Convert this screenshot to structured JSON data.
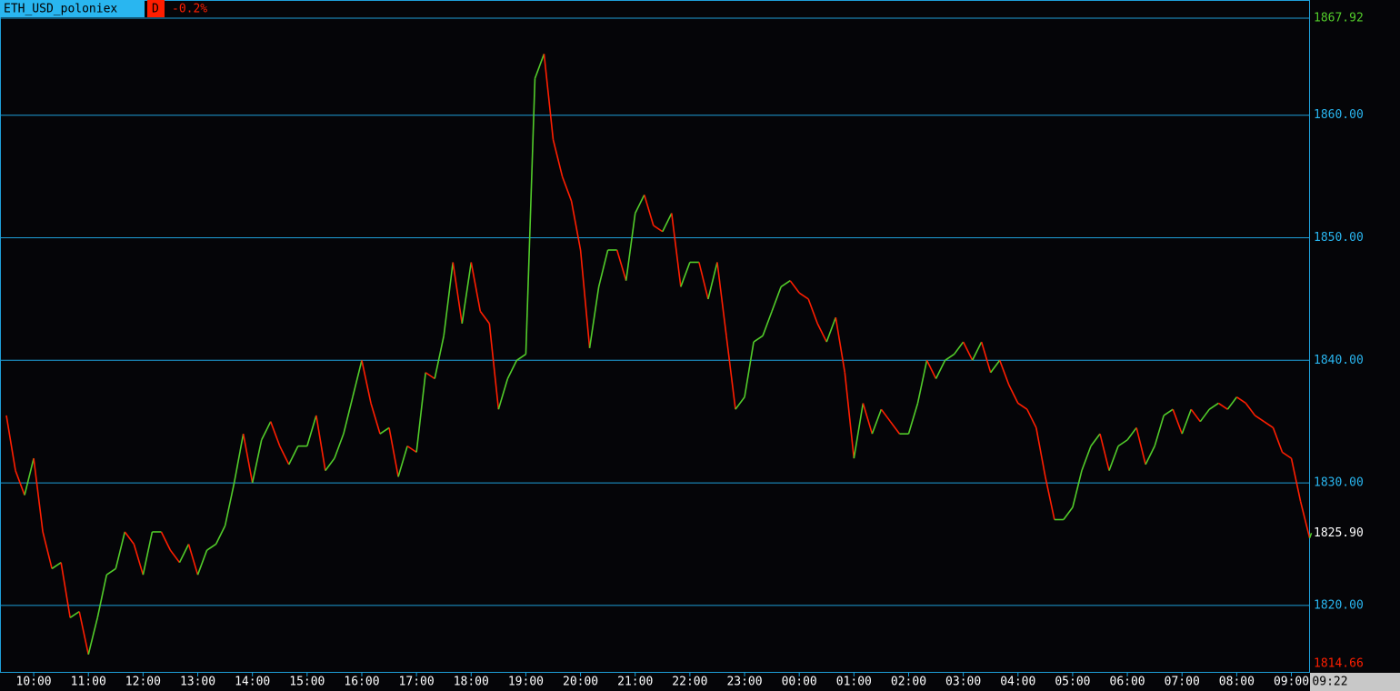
{
  "chart_data": {
    "type": "line",
    "title": "ETH_USD_poloniex",
    "interval": "D",
    "change": "-0.2%",
    "x": [
      "09:30",
      "09:40",
      "09:50",
      "10:00",
      "10:10",
      "10:20",
      "10:30",
      "10:40",
      "10:50",
      "11:00",
      "11:10",
      "11:20",
      "11:30",
      "11:40",
      "11:50",
      "12:00",
      "12:10",
      "12:20",
      "12:30",
      "12:40",
      "12:50",
      "13:00",
      "13:10",
      "13:20",
      "13:30",
      "13:40",
      "13:50",
      "14:00",
      "14:10",
      "14:20",
      "14:30",
      "14:40",
      "14:50",
      "15:00",
      "15:10",
      "15:20",
      "15:30",
      "15:40",
      "15:50",
      "16:00",
      "16:10",
      "16:20",
      "16:30",
      "16:40",
      "16:50",
      "17:00",
      "17:10",
      "17:20",
      "17:30",
      "17:40",
      "17:50",
      "18:00",
      "18:10",
      "18:20",
      "18:30",
      "18:40",
      "18:50",
      "19:00",
      "19:10",
      "19:20",
      "19:30",
      "19:40",
      "19:50",
      "20:00",
      "20:10",
      "20:20",
      "20:30",
      "20:40",
      "20:50",
      "21:00",
      "21:10",
      "21:20",
      "21:30",
      "21:40",
      "21:50",
      "22:00",
      "22:10",
      "22:20",
      "22:30",
      "22:40",
      "22:50",
      "23:00",
      "23:10",
      "23:20",
      "23:30",
      "23:40",
      "23:50",
      "00:00",
      "00:10",
      "00:20",
      "00:30",
      "00:40",
      "00:50",
      "01:00",
      "01:10",
      "01:20",
      "01:30",
      "01:40",
      "01:50",
      "02:00",
      "02:10",
      "02:20",
      "02:30",
      "02:40",
      "02:50",
      "03:00",
      "03:10",
      "03:20",
      "03:30",
      "03:40",
      "03:50",
      "04:00",
      "04:10",
      "04:20",
      "04:30",
      "04:40",
      "04:50",
      "05:00",
      "05:10",
      "05:20",
      "05:30",
      "05:40",
      "05:50",
      "06:00",
      "06:10",
      "06:20",
      "06:30",
      "06:40",
      "06:50",
      "07:00",
      "07:10",
      "07:20",
      "07:30",
      "07:40",
      "07:50",
      "08:00",
      "08:10",
      "08:20",
      "08:30",
      "08:40",
      "08:50",
      "09:00",
      "09:10",
      "09:20",
      "09:22"
    ],
    "values": [
      1835.5,
      1831,
      1829,
      1832,
      1826,
      1823,
      1823.5,
      1819,
      1819.5,
      1816,
      1819,
      1822.5,
      1823,
      1826,
      1825,
      1822.5,
      1826,
      1826,
      1824.5,
      1823.5,
      1825,
      1822.5,
      1824.5,
      1825,
      1826.5,
      1830,
      1834,
      1830,
      1833.5,
      1835,
      1833,
      1831.5,
      1833,
      1833,
      1835.5,
      1831,
      1832,
      1834,
      1837,
      1840,
      1836.5,
      1834,
      1834.5,
      1830.5,
      1833,
      1832.5,
      1839,
      1838.5,
      1842,
      1848,
      1843,
      1848,
      1844,
      1843,
      1836,
      1838.5,
      1840,
      1840.5,
      1863,
      1865,
      1858,
      1855,
      1853,
      1849,
      1841,
      1846,
      1849,
      1849,
      1846.5,
      1852,
      1853.5,
      1851,
      1850.5,
      1852,
      1846,
      1848,
      1848,
      1845,
      1848,
      1842,
      1836,
      1837,
      1841.5,
      1842,
      1844,
      1846,
      1846.5,
      1845.5,
      1845,
      1843,
      1841.5,
      1843.5,
      1839,
      1832,
      1836.5,
      1834,
      1836,
      1835,
      1834,
      1834,
      1836.5,
      1840,
      1838.5,
      1840,
      1840.5,
      1841.5,
      1840,
      1841.5,
      1839,
      1840,
      1838,
      1836.5,
      1836,
      1834.5,
      1830.5,
      1827,
      1827,
      1828,
      1831,
      1833,
      1834,
      1831,
      1833,
      1833.5,
      1834.5,
      1831.5,
      1833,
      1835.5,
      1836,
      1834,
      1836,
      1835,
      1836,
      1836.5,
      1836,
      1837,
      1836.5,
      1835.5,
      1835,
      1834.5,
      1832.5,
      1832,
      1828.5,
      1825.5,
      1825.9
    ],
    "xticks": [
      "10:00",
      "11:00",
      "12:00",
      "13:00",
      "14:00",
      "15:00",
      "16:00",
      "17:00",
      "18:00",
      "19:00",
      "20:00",
      "21:00",
      "22:00",
      "23:00",
      "00:00",
      "01:00",
      "02:00",
      "03:00",
      "04:00",
      "05:00",
      "06:00",
      "07:00",
      "08:00",
      "09:00"
    ],
    "ylim": [
      1814.5,
      1869.4
    ],
    "yticks": [
      {
        "value": 1820,
        "label": "1820.00"
      },
      {
        "value": 1830,
        "label": "1830.00"
      },
      {
        "value": 1840,
        "label": "1840.00"
      },
      {
        "value": 1850,
        "label": "1850.00"
      },
      {
        "value": 1860,
        "label": "1860.00"
      }
    ],
    "high": 1867.92,
    "low": 1814.66,
    "last": {
      "value": 1825.9,
      "label": "1825.90"
    },
    "grid": true,
    "up_color": "#52cc2a",
    "down_color": "#ff1e00",
    "grid_color": "#1e9fd8"
  }
}
